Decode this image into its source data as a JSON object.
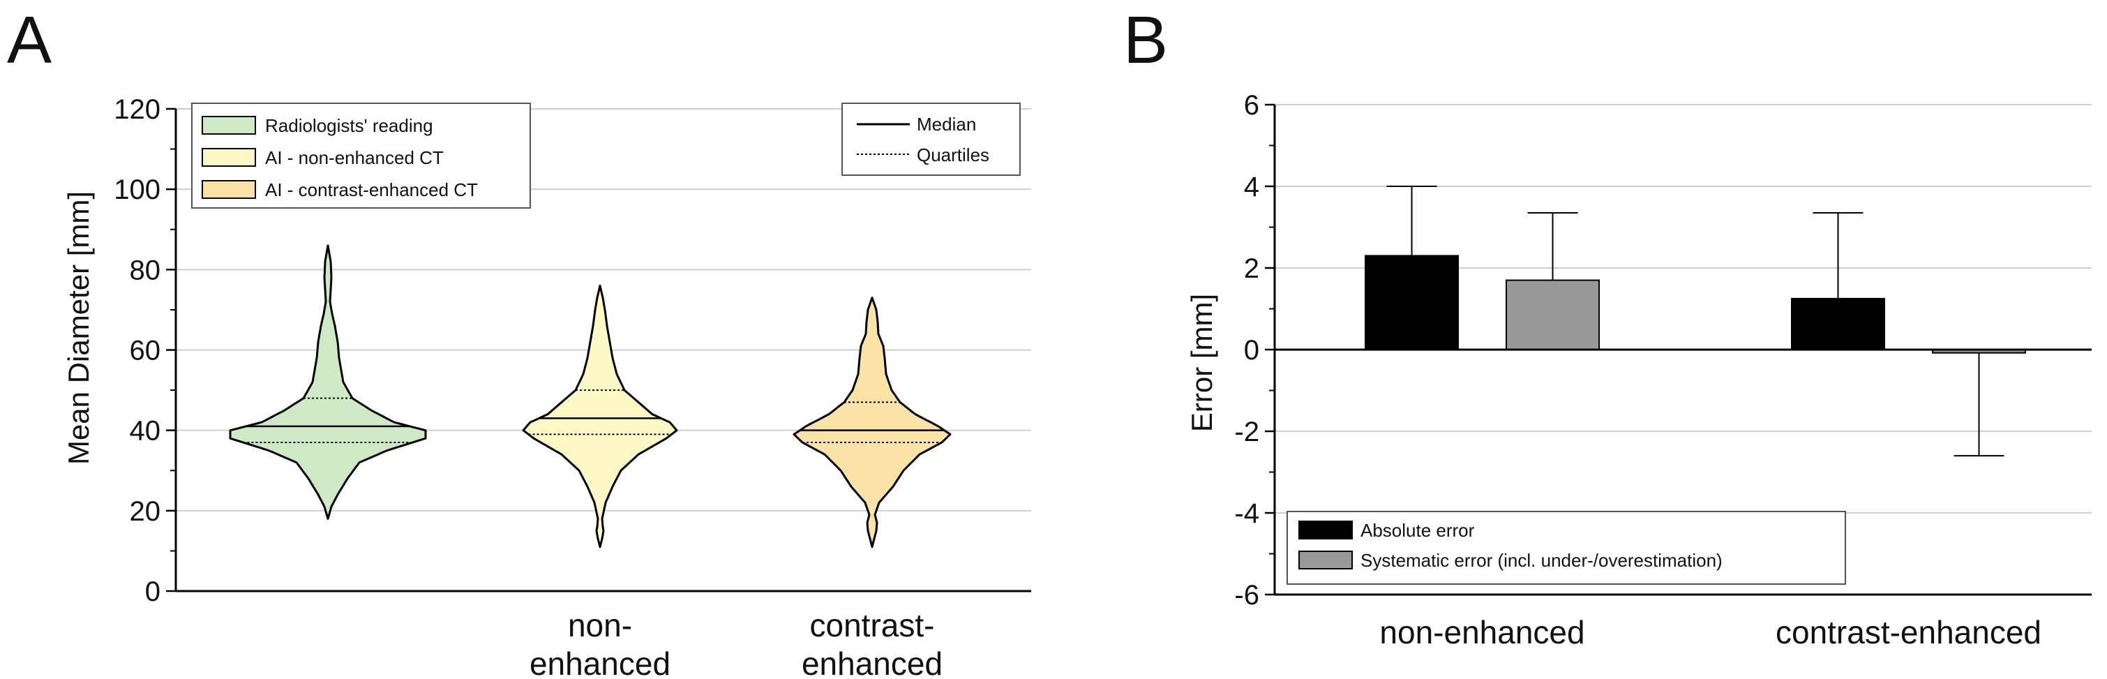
{
  "panels": {
    "a_letter": "A",
    "b_letter": "B"
  },
  "chart_data": [
    {
      "type": "violin",
      "panel": "A",
      "ylabel": "Mean Diameter [mm]",
      "ylim": [
        0,
        120
      ],
      "yticks": [
        0,
        20,
        40,
        60,
        80,
        100,
        120
      ],
      "grid": true,
      "groups": [
        {
          "name": "Radiologists' reading",
          "label_lines": [],
          "color": "#cfe8c6",
          "min": 18,
          "max": 86,
          "q1": 37,
          "median": 41,
          "q3": 48
        },
        {
          "name": "AI - non-enhanced CT",
          "label_lines": [
            "non-",
            "enhanced"
          ],
          "color": "#fdf8c6",
          "min": 11,
          "max": 76,
          "q1": 39,
          "median": 43,
          "q3": 50
        },
        {
          "name": "AI - contrast-enhanced CT",
          "label_lines": [
            "contrast-",
            "enhanced"
          ],
          "color": "#fbe2a7",
          "min": 11,
          "max": 73,
          "q1": 37,
          "median": 40,
          "q3": 47
        }
      ],
      "legend": {
        "entries": [
          "Radiologists' reading",
          "AI - non-enhanced CT",
          "AI - contrast-enhanced CT"
        ],
        "line_entries": [
          "Median",
          "Quartiles"
        ],
        "position": "top-left / top-right"
      }
    },
    {
      "type": "bar",
      "panel": "B",
      "ylabel": "Error [mm]",
      "ylim": [
        -6,
        6
      ],
      "yticks": [
        -6,
        -4,
        -2,
        0,
        2,
        4,
        6
      ],
      "grid": true,
      "categories": [
        "non-enhanced",
        "contrast-enhanced"
      ],
      "series": [
        {
          "name": "Absolute error",
          "color": "#000000",
          "values": [
            2.3,
            1.25
          ],
          "error_tips": [
            4.0,
            3.35
          ]
        },
        {
          "name": "Systematic error (incl. under-/overestimation)",
          "color": "#999999",
          "values": [
            1.7,
            -0.08
          ],
          "error_tips": [
            3.35,
            -2.6
          ]
        }
      ],
      "legend_position": "bottom-left"
    }
  ]
}
